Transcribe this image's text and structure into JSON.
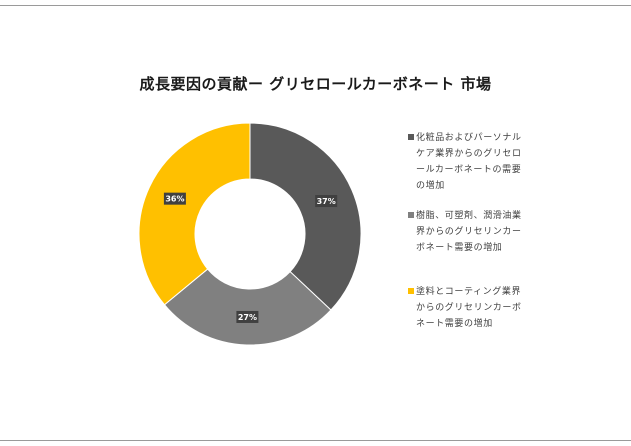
{
  "chart_data": {
    "type": "doughnut",
    "title": "成長要因の貢献ー グリセロールカーボネート 市場",
    "series": [
      {
        "name": "化粧品およびパーソナルケア業界からのグリセロールカーボネートの需要の増加",
        "value": 37,
        "label": "37%",
        "color": "#595959"
      },
      {
        "name": "樹脂、可塑剤、潤滑油業界からのグリセリンカーボネート需要の増加",
        "value": 27,
        "label": "27%",
        "color": "#808080"
      },
      {
        "name": "塗料とコーティング業界からのグリセリンカーボネート需要の増加",
        "value": 36,
        "label": "36%",
        "color": "#ffc000"
      }
    ],
    "legend_position": "right"
  }
}
